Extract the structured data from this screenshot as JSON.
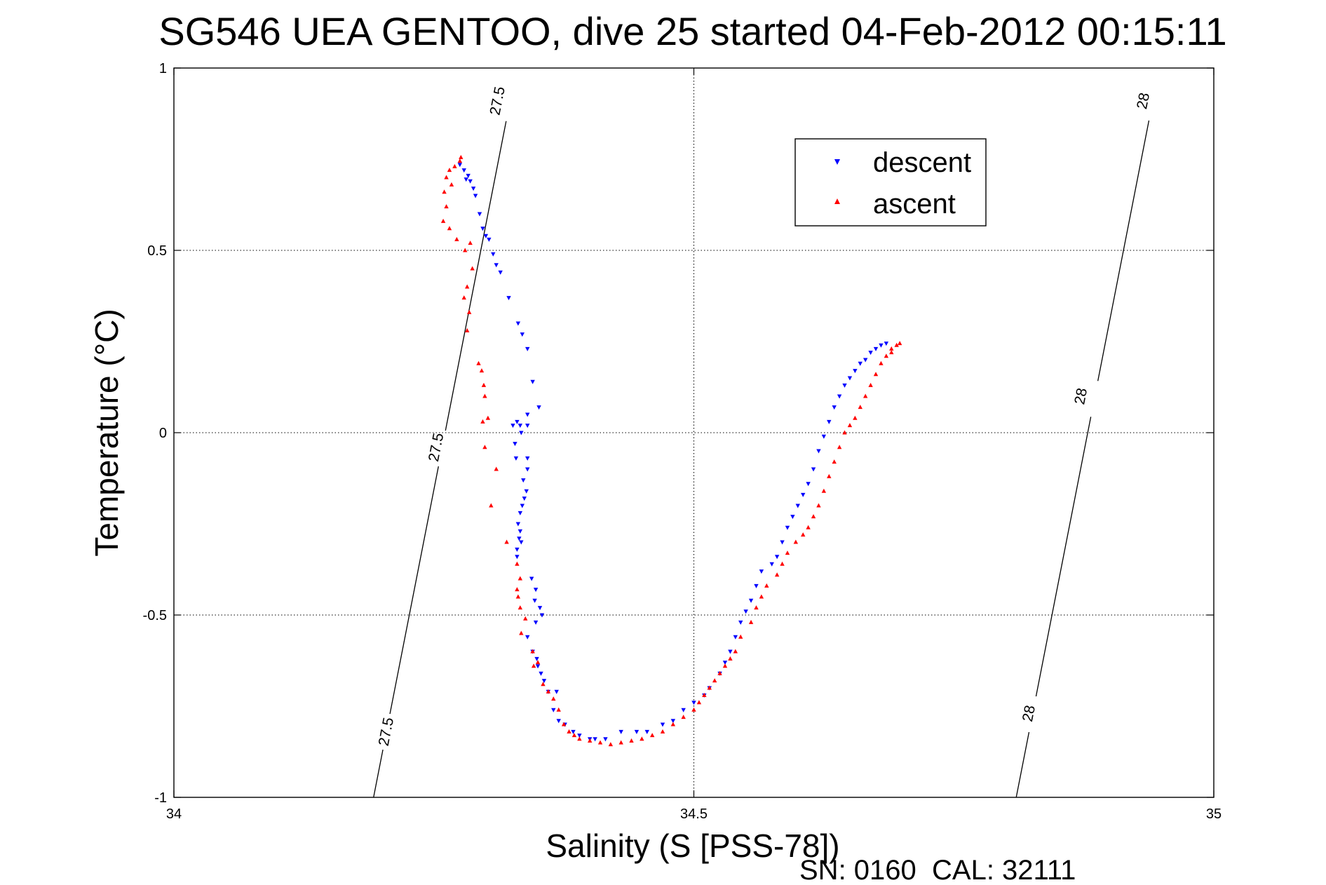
{
  "chart_data": {
    "type": "scatter",
    "title": "SG546 UEA GENTOO, dive 25 started 04-Feb-2012 00:15:11",
    "xlabel": "Salinity (S [PSS-78])",
    "ylabel": "Temperature (°C)",
    "xlim": [
      34,
      35
    ],
    "ylim": [
      -1,
      1
    ],
    "xticks": [
      34,
      34.5,
      35
    ],
    "xtick_labels": [
      "34",
      "34.5",
      "35"
    ],
    "yticks": [
      1,
      0.5,
      0,
      -0.5,
      -1
    ],
    "ytick_labels": [
      "1",
      "0.5",
      "0",
      "-0.5",
      "-1"
    ],
    "grid": true,
    "legend_position": "top-right",
    "footer": "SN: 0160  CAL: 32111",
    "density_contours": [
      {
        "level": "27.5",
        "points": [
          [
            34.192,
            -1
          ],
          [
            34.317,
            0.818
          ]
        ],
        "label_positions": [
          [
            34.204,
            -0.82
          ],
          [
            34.252,
            -0.04
          ],
          [
            34.311,
            0.91
          ]
        ]
      },
      {
        "level": "28",
        "points": [
          [
            34.81,
            -1
          ],
          [
            34.935,
            0.818
          ]
        ],
        "label_positions": [
          [
            34.822,
            -0.77
          ],
          [
            34.872,
            0.1
          ],
          [
            34.932,
            0.91
          ]
        ]
      }
    ],
    "series": [
      {
        "name": "descent",
        "color": "#0000ff",
        "marker": "triangle-down",
        "points": [
          [
            34.275,
            0.735
          ],
          [
            34.279,
            0.72
          ],
          [
            34.283,
            0.705
          ],
          [
            34.281,
            0.695
          ],
          [
            34.285,
            0.69
          ],
          [
            34.288,
            0.67
          ],
          [
            34.29,
            0.65
          ],
          [
            34.294,
            0.6
          ],
          [
            34.297,
            0.56
          ],
          [
            34.3,
            0.54
          ],
          [
            34.303,
            0.53
          ],
          [
            34.307,
            0.49
          ],
          [
            34.31,
            0.46
          ],
          [
            34.314,
            0.44
          ],
          [
            34.322,
            0.37
          ],
          [
            34.331,
            0.3
          ],
          [
            34.335,
            0.27
          ],
          [
            34.34,
            0.23
          ],
          [
            34.345,
            0.14
          ],
          [
            34.351,
            0.07
          ],
          [
            34.34,
            0.05
          ],
          [
            34.33,
            0.03
          ],
          [
            34.333,
            0.02
          ],
          [
            34.326,
            0.02
          ],
          [
            34.34,
            0.02
          ],
          [
            34.334,
            0.0
          ],
          [
            34.328,
            -0.03
          ],
          [
            34.329,
            -0.07
          ],
          [
            34.34,
            -0.07
          ],
          [
            34.34,
            -0.1
          ],
          [
            34.336,
            -0.13
          ],
          [
            34.339,
            -0.16
          ],
          [
            34.337,
            -0.18
          ],
          [
            34.335,
            -0.2
          ],
          [
            34.333,
            -0.22
          ],
          [
            34.331,
            -0.25
          ],
          [
            34.333,
            -0.27
          ],
          [
            34.332,
            -0.29
          ],
          [
            34.334,
            -0.3
          ],
          [
            34.33,
            -0.32
          ],
          [
            34.33,
            -0.34
          ],
          [
            34.344,
            -0.4
          ],
          [
            34.348,
            -0.43
          ],
          [
            34.347,
            -0.46
          ],
          [
            34.352,
            -0.48
          ],
          [
            34.354,
            -0.5
          ],
          [
            34.348,
            -0.52
          ],
          [
            34.34,
            -0.56
          ],
          [
            34.345,
            -0.6
          ],
          [
            34.349,
            -0.62
          ],
          [
            34.35,
            -0.64
          ],
          [
            34.353,
            -0.66
          ],
          [
            34.356,
            -0.68
          ],
          [
            34.36,
            -0.71
          ],
          [
            34.368,
            -0.71
          ],
          [
            34.365,
            -0.76
          ],
          [
            34.37,
            -0.79
          ],
          [
            34.376,
            -0.8
          ],
          [
            34.384,
            -0.82
          ],
          [
            34.39,
            -0.83
          ],
          [
            34.4,
            -0.84
          ],
          [
            34.405,
            -0.84
          ],
          [
            34.415,
            -0.84
          ],
          [
            34.43,
            -0.82
          ],
          [
            34.445,
            -0.82
          ],
          [
            34.455,
            -0.82
          ],
          [
            34.47,
            -0.8
          ],
          [
            34.48,
            -0.79
          ],
          [
            34.49,
            -0.76
          ],
          [
            34.5,
            -0.74
          ],
          [
            34.51,
            -0.72
          ],
          [
            34.515,
            -0.7
          ],
          [
            34.525,
            -0.66
          ],
          [
            34.53,
            -0.63
          ],
          [
            34.535,
            -0.6
          ],
          [
            34.54,
            -0.56
          ],
          [
            34.545,
            -0.52
          ],
          [
            34.55,
            -0.49
          ],
          [
            34.555,
            -0.46
          ],
          [
            34.56,
            -0.42
          ],
          [
            34.565,
            -0.38
          ],
          [
            34.575,
            -0.36
          ],
          [
            34.58,
            -0.34
          ],
          [
            34.585,
            -0.3
          ],
          [
            34.59,
            -0.26
          ],
          [
            34.595,
            -0.23
          ],
          [
            34.6,
            -0.2
          ],
          [
            34.605,
            -0.17
          ],
          [
            34.61,
            -0.14
          ],
          [
            34.615,
            -0.1
          ],
          [
            34.62,
            -0.05
          ],
          [
            34.625,
            -0.01
          ],
          [
            34.63,
            0.03
          ],
          [
            34.635,
            0.07
          ],
          [
            34.64,
            0.1
          ],
          [
            34.645,
            0.13
          ],
          [
            34.65,
            0.15
          ],
          [
            34.655,
            0.17
          ],
          [
            34.66,
            0.19
          ],
          [
            34.665,
            0.2
          ],
          [
            34.67,
            0.22
          ],
          [
            34.675,
            0.23
          ],
          [
            34.68,
            0.24
          ],
          [
            34.685,
            0.245
          ]
        ]
      },
      {
        "name": "ascent",
        "color": "#ff0000",
        "marker": "triangle-up",
        "points": [
          [
            34.275,
            0.745
          ],
          [
            34.276,
            0.755
          ],
          [
            34.27,
            0.73
          ],
          [
            34.265,
            0.72
          ],
          [
            34.262,
            0.7
          ],
          [
            34.267,
            0.68
          ],
          [
            34.26,
            0.66
          ],
          [
            34.262,
            0.62
          ],
          [
            34.259,
            0.58
          ],
          [
            34.265,
            0.56
          ],
          [
            34.272,
            0.53
          ],
          [
            34.28,
            0.5
          ],
          [
            34.285,
            0.52
          ],
          [
            34.287,
            0.45
          ],
          [
            34.282,
            0.4
          ],
          [
            34.279,
            0.37
          ],
          [
            34.284,
            0.33
          ],
          [
            34.282,
            0.28
          ],
          [
            34.293,
            0.19
          ],
          [
            34.296,
            0.17
          ],
          [
            34.298,
            0.13
          ],
          [
            34.299,
            0.1
          ],
          [
            34.302,
            0.04
          ],
          [
            34.297,
            0.03
          ],
          [
            34.299,
            -0.04
          ],
          [
            34.31,
            -0.1
          ],
          [
            34.305,
            -0.2
          ],
          [
            34.32,
            -0.3
          ],
          [
            34.33,
            -0.36
          ],
          [
            34.333,
            -0.4
          ],
          [
            34.33,
            -0.43
          ],
          [
            34.331,
            -0.45
          ],
          [
            34.333,
            -0.48
          ],
          [
            34.338,
            -0.51
          ],
          [
            34.334,
            -0.55
          ],
          [
            34.345,
            -0.6
          ],
          [
            34.35,
            -0.63
          ],
          [
            34.346,
            -0.64
          ],
          [
            34.355,
            -0.69
          ],
          [
            34.36,
            -0.71
          ],
          [
            34.365,
            -0.73
          ],
          [
            34.37,
            -0.76
          ],
          [
            34.375,
            -0.8
          ],
          [
            34.38,
            -0.82
          ],
          [
            34.385,
            -0.83
          ],
          [
            34.39,
            -0.84
          ],
          [
            34.4,
            -0.845
          ],
          [
            34.41,
            -0.85
          ],
          [
            34.42,
            -0.855
          ],
          [
            34.43,
            -0.85
          ],
          [
            34.44,
            -0.845
          ],
          [
            34.45,
            -0.84
          ],
          [
            34.46,
            -0.83
          ],
          [
            34.47,
            -0.82
          ],
          [
            34.48,
            -0.8
          ],
          [
            34.49,
            -0.78
          ],
          [
            34.5,
            -0.76
          ],
          [
            34.505,
            -0.74
          ],
          [
            34.51,
            -0.72
          ],
          [
            34.515,
            -0.7
          ],
          [
            34.52,
            -0.68
          ],
          [
            34.525,
            -0.66
          ],
          [
            34.53,
            -0.64
          ],
          [
            34.535,
            -0.62
          ],
          [
            34.54,
            -0.6
          ],
          [
            34.545,
            -0.56
          ],
          [
            34.555,
            -0.52
          ],
          [
            34.56,
            -0.48
          ],
          [
            34.565,
            -0.45
          ],
          [
            34.57,
            -0.42
          ],
          [
            34.58,
            -0.39
          ],
          [
            34.585,
            -0.36
          ],
          [
            34.59,
            -0.33
          ],
          [
            34.598,
            -0.3
          ],
          [
            34.605,
            -0.28
          ],
          [
            34.61,
            -0.26
          ],
          [
            34.615,
            -0.23
          ],
          [
            34.62,
            -0.2
          ],
          [
            34.625,
            -0.16
          ],
          [
            34.63,
            -0.12
          ],
          [
            34.635,
            -0.08
          ],
          [
            34.64,
            -0.04
          ],
          [
            34.645,
            0.0
          ],
          [
            34.65,
            0.02
          ],
          [
            34.655,
            0.04
          ],
          [
            34.66,
            0.07
          ],
          [
            34.665,
            0.1
          ],
          [
            34.67,
            0.13
          ],
          [
            34.675,
            0.16
          ],
          [
            34.68,
            0.19
          ],
          [
            34.685,
            0.21
          ],
          [
            34.69,
            0.23
          ],
          [
            34.695,
            0.24
          ],
          [
            34.698,
            0.245
          ],
          [
            34.69,
            0.22
          ]
        ]
      }
    ]
  }
}
